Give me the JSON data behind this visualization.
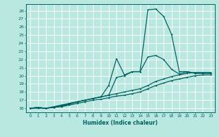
{
  "xlabel": "Humidex (Indice chaleur)",
  "bg_color": "#b8e8e0",
  "grid_color": "#ffffff",
  "line_color": "#006060",
  "xlim": [
    -0.5,
    23.5
  ],
  "ylim": [
    15.5,
    28.8
  ],
  "yticks": [
    16,
    17,
    18,
    19,
    20,
    21,
    22,
    23,
    24,
    25,
    26,
    27,
    28
  ],
  "xticks": [
    0,
    1,
    2,
    3,
    4,
    5,
    6,
    7,
    8,
    9,
    10,
    11,
    12,
    13,
    14,
    15,
    16,
    17,
    18,
    19,
    20,
    21,
    22,
    23
  ],
  "series1_x": [
    0,
    1,
    2,
    3,
    4,
    5,
    6,
    7,
    8,
    9,
    10,
    11,
    12,
    13,
    14,
    15,
    16,
    17,
    18,
    19,
    20,
    21,
    22,
    23
  ],
  "series1_y": [
    16.0,
    16.1,
    16.0,
    16.1,
    16.3,
    16.5,
    16.8,
    17.0,
    17.2,
    17.4,
    17.6,
    19.8,
    20.0,
    20.5,
    20.5,
    28.1,
    28.2,
    27.3,
    25.1,
    20.5,
    20.5,
    20.3,
    20.3,
    20.3
  ],
  "series2_x": [
    0,
    1,
    2,
    3,
    4,
    5,
    6,
    7,
    8,
    9,
    10,
    11,
    12,
    13,
    14,
    15,
    16,
    17,
    18,
    19,
    20,
    21,
    22,
    23
  ],
  "series2_y": [
    16.0,
    16.1,
    16.0,
    16.1,
    16.3,
    16.6,
    16.8,
    17.0,
    17.2,
    17.4,
    18.8,
    22.1,
    20.1,
    20.5,
    20.5,
    22.3,
    22.5,
    22.0,
    20.8,
    20.2,
    20.5,
    20.3,
    20.3,
    20.3
  ],
  "series3_x": [
    0,
    1,
    2,
    3,
    4,
    5,
    6,
    7,
    8,
    9,
    10,
    11,
    12,
    13,
    14,
    15,
    16,
    17,
    18,
    19,
    20,
    21,
    22,
    23
  ],
  "series3_y": [
    16.0,
    16.1,
    16.0,
    16.2,
    16.4,
    16.6,
    16.8,
    17.0,
    17.2,
    17.4,
    17.6,
    17.8,
    18.0,
    18.2,
    18.4,
    18.8,
    19.3,
    19.6,
    19.9,
    20.1,
    20.3,
    20.4,
    20.4,
    20.4
  ],
  "series4_x": [
    0,
    1,
    2,
    3,
    4,
    5,
    6,
    7,
    8,
    9,
    10,
    11,
    12,
    13,
    14,
    15,
    16,
    17,
    18,
    19,
    20,
    21,
    22,
    23
  ],
  "series4_y": [
    16.0,
    16.0,
    16.0,
    16.1,
    16.2,
    16.4,
    16.6,
    16.8,
    17.0,
    17.1,
    17.3,
    17.5,
    17.6,
    17.8,
    18.0,
    18.4,
    18.8,
    19.1,
    19.4,
    19.6,
    19.8,
    20.0,
    20.1,
    20.1
  ]
}
